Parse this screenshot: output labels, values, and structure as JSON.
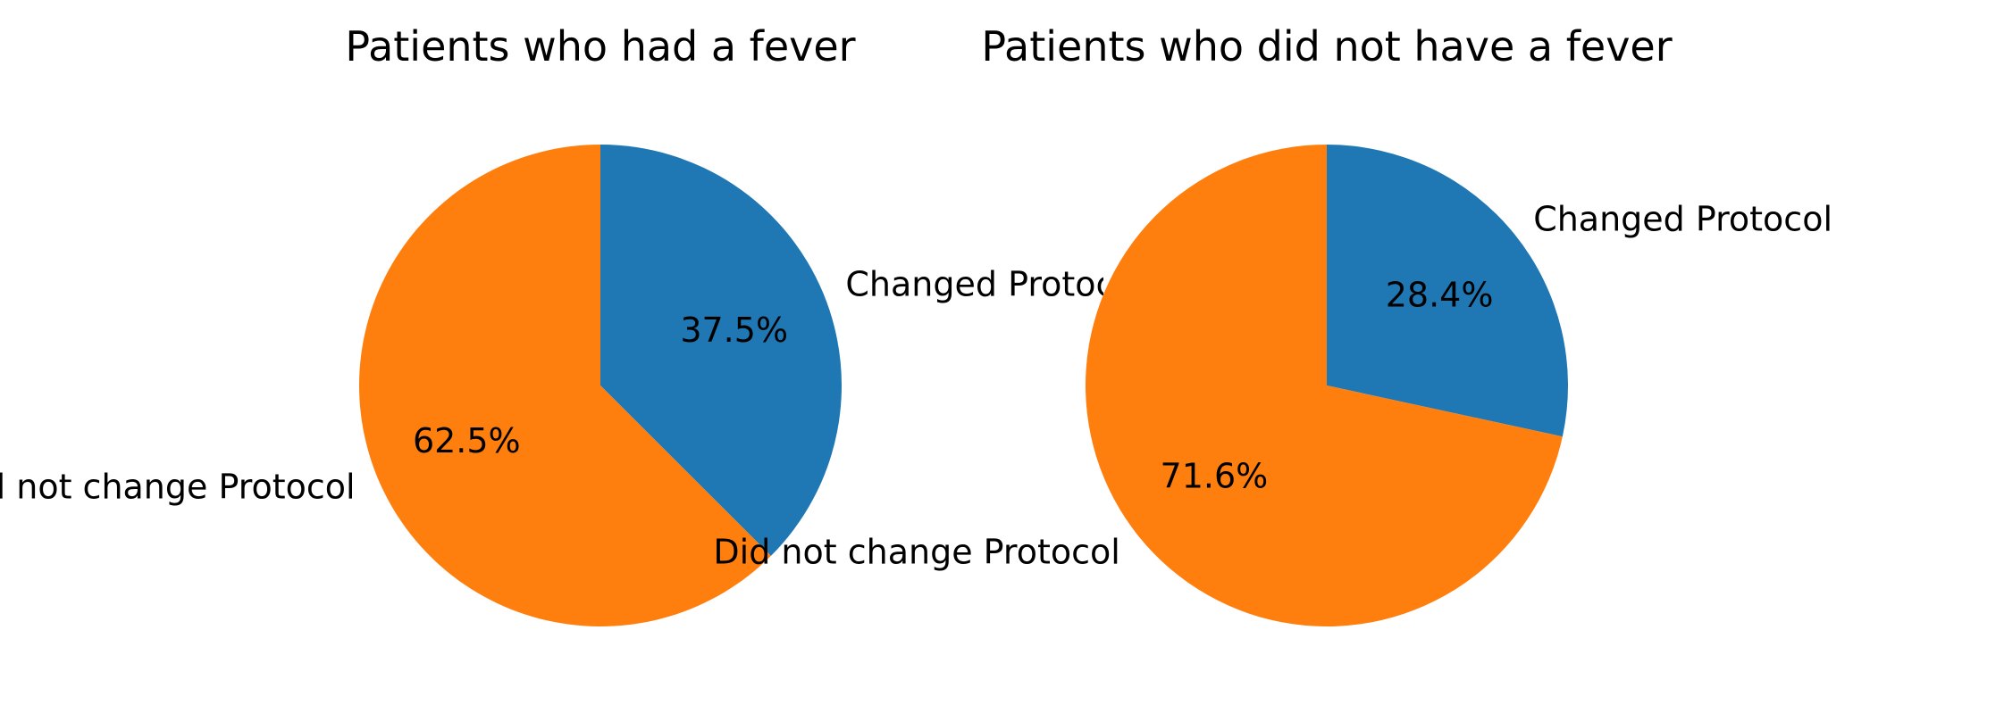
{
  "chart_data": [
    {
      "type": "pie",
      "title": "Patients who had a fever",
      "labels": [
        "Changed Protocol",
        "Did not change Protocol"
      ],
      "values": [
        37.5,
        62.5
      ],
      "autopct": [
        "37.5%",
        "62.5%"
      ],
      "colors": [
        "#1f77b4",
        "#ff7f0e"
      ],
      "start_angle_deg": 90,
      "direction": "clockwise"
    },
    {
      "type": "pie",
      "title": "Patients who did not have a fever",
      "labels": [
        "Changed Protocol",
        "Did not change Protocol"
      ],
      "values": [
        28.4,
        71.6
      ],
      "autopct": [
        "28.4%",
        "71.6%"
      ],
      "colors": [
        "#1f77b4",
        "#ff7f0e"
      ],
      "start_angle_deg": 90,
      "direction": "clockwise"
    }
  ]
}
